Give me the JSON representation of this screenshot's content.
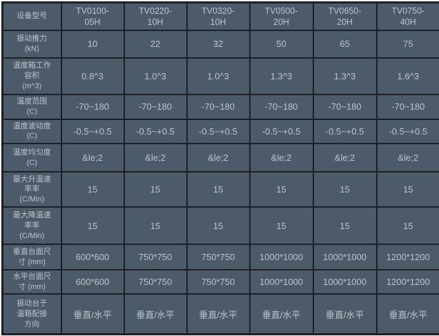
{
  "colors": {
    "cell_bg": "#4d5a69",
    "grid_border": "#1b2027",
    "text": "#bcc4cc",
    "page_bg": "#ffffff"
  },
  "table": {
    "header": {
      "label": "设备型号",
      "models": [
        "TV0100-\n05H",
        "TV0220-\n10H",
        "TV0320-\n10H",
        "TV0500-\n20H",
        "TV0650-\n20H",
        "TV0750-\n40H"
      ]
    },
    "rows": [
      {
        "label": "振动推力\n(kN)",
        "values": [
          "10",
          "22",
          "32",
          "50",
          "65",
          "75"
        ]
      },
      {
        "label": "温度箱工作\n容积\n(m^3)",
        "values": [
          "0.8^3",
          "1.0^3",
          "1.0^3",
          "1.3^3",
          "1.3^3",
          "1.6^3"
        ]
      },
      {
        "label": "温度范围\n(C)",
        "values": [
          "-70~180",
          "-70~180",
          "-70~180",
          "-70~180",
          "-70~180",
          "-70~180"
        ]
      },
      {
        "label": "温度波动度\n(C)",
        "values": [
          "-0.5~+0.5",
          "-0.5~+0.5",
          "-0.5~+0.5",
          "-0.5~+0.5",
          "-0.5~+0.5",
          "-0.5~+0.5"
        ]
      },
      {
        "label": "温度均匀度\n(C)",
        "values": [
          "&le;2",
          "&le;2",
          "&le;2",
          "&le;2",
          "&le;2",
          "&le;2"
        ]
      },
      {
        "label": "最大升温速\n率率\n(C/Min)",
        "values": [
          "15",
          "15",
          "15",
          "15",
          "15",
          "15"
        ]
      },
      {
        "label": "最大降温速\n率率\n(C/Min)",
        "values": [
          "15",
          "15",
          "15",
          "15",
          "15",
          "15"
        ]
      },
      {
        "label": "垂直台面尺\n寸 (mm)",
        "values": [
          "600*600",
          "750*750",
          "750*750",
          "1000*1000",
          "1000*1000",
          "1200*1200"
        ]
      },
      {
        "label": "水平台面尺\n寸 (mm)",
        "values": [
          "600*600",
          "750*750",
          "750*750",
          "1000*1000",
          "1000*1000",
          "1200*1200"
        ]
      },
      {
        "label": "振动台于\n温箱配接\n方向",
        "values": [
          "垂直/水平",
          "垂直/水平",
          "垂直/水平",
          "垂直/水平",
          "垂直/水平",
          "垂直/水平"
        ]
      }
    ]
  }
}
